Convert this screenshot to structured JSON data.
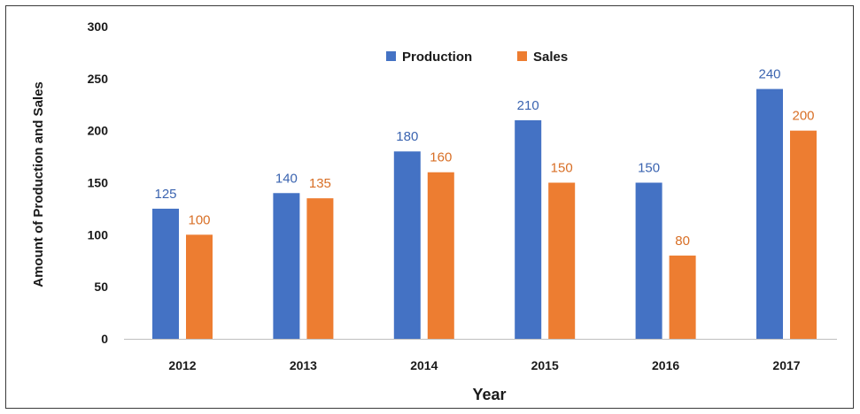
{
  "chart_data": {
    "type": "bar",
    "categories": [
      "2012",
      "2013",
      "2014",
      "2015",
      "2016",
      "2017"
    ],
    "series": [
      {
        "name": "Production",
        "values": [
          125,
          140,
          180,
          210,
          150,
          240
        ],
        "color": "#4472C4",
        "label_color": "#3B64B0"
      },
      {
        "name": "Sales",
        "values": [
          100,
          135,
          160,
          150,
          80,
          200
        ],
        "color": "#ED7D31",
        "label_color": "#D86F26"
      }
    ],
    "title": "",
    "xlabel": "Year",
    "ylabel": "Amount of Production and Sales",
    "ylim": [
      0,
      300
    ],
    "yticks": [
      0,
      50,
      100,
      150,
      200,
      250,
      300
    ],
    "grid": false,
    "legend_position": "top-center"
  }
}
